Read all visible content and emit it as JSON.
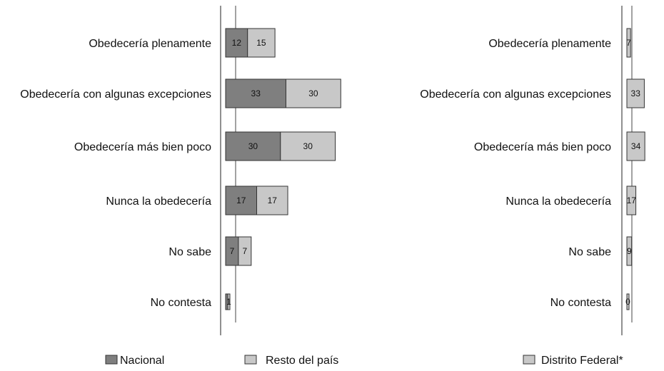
{
  "chart_data": [
    {
      "type": "bar",
      "stacked": true,
      "orientation": "horizontal",
      "categories": [
        "Obedecería plenamente",
        "Obedecería con algunas excepciones",
        "Obedecería más bien poco",
        "Nunca la obedecería",
        "No sabe",
        "No contesta"
      ],
      "series": [
        {
          "name": "Nacional",
          "color": "#7f7f7f",
          "values": [
            12,
            33,
            30,
            17,
            7,
            1
          ],
          "labels": [
            "12",
            "33",
            "30",
            "17",
            "7",
            ""
          ]
        },
        {
          "name": "Resto del país",
          "color": "#c8c8c8",
          "values": [
            15,
            30,
            30,
            17,
            7,
            1
          ],
          "labels": [
            "15",
            "30",
            "30",
            "17",
            "7",
            "1"
          ]
        }
      ]
    },
    {
      "type": "bar",
      "orientation": "horizontal",
      "categories": [
        "Obedecería plenamente",
        "Obedecería con algunas excepciones",
        "Obedecería más bien poco",
        "Nunca la obedecería",
        "No sabe",
        "No contesta"
      ],
      "series": [
        {
          "name": "Distrito Federal*",
          "color": "#c8c8c8",
          "values": [
            7,
            33,
            34,
            17,
            9,
            0
          ],
          "labels": [
            "7",
            "33",
            "34",
            "17",
            "9",
            "0"
          ]
        }
      ]
    }
  ],
  "legends": [
    [
      {
        "label": "Nacional",
        "color": "#7f7f7f"
      },
      {
        "label": "Resto del país",
        "color": "#c8c8c8"
      }
    ],
    [
      {
        "label": "Distrito Federal*",
        "color": "#c8c8c8"
      }
    ]
  ]
}
